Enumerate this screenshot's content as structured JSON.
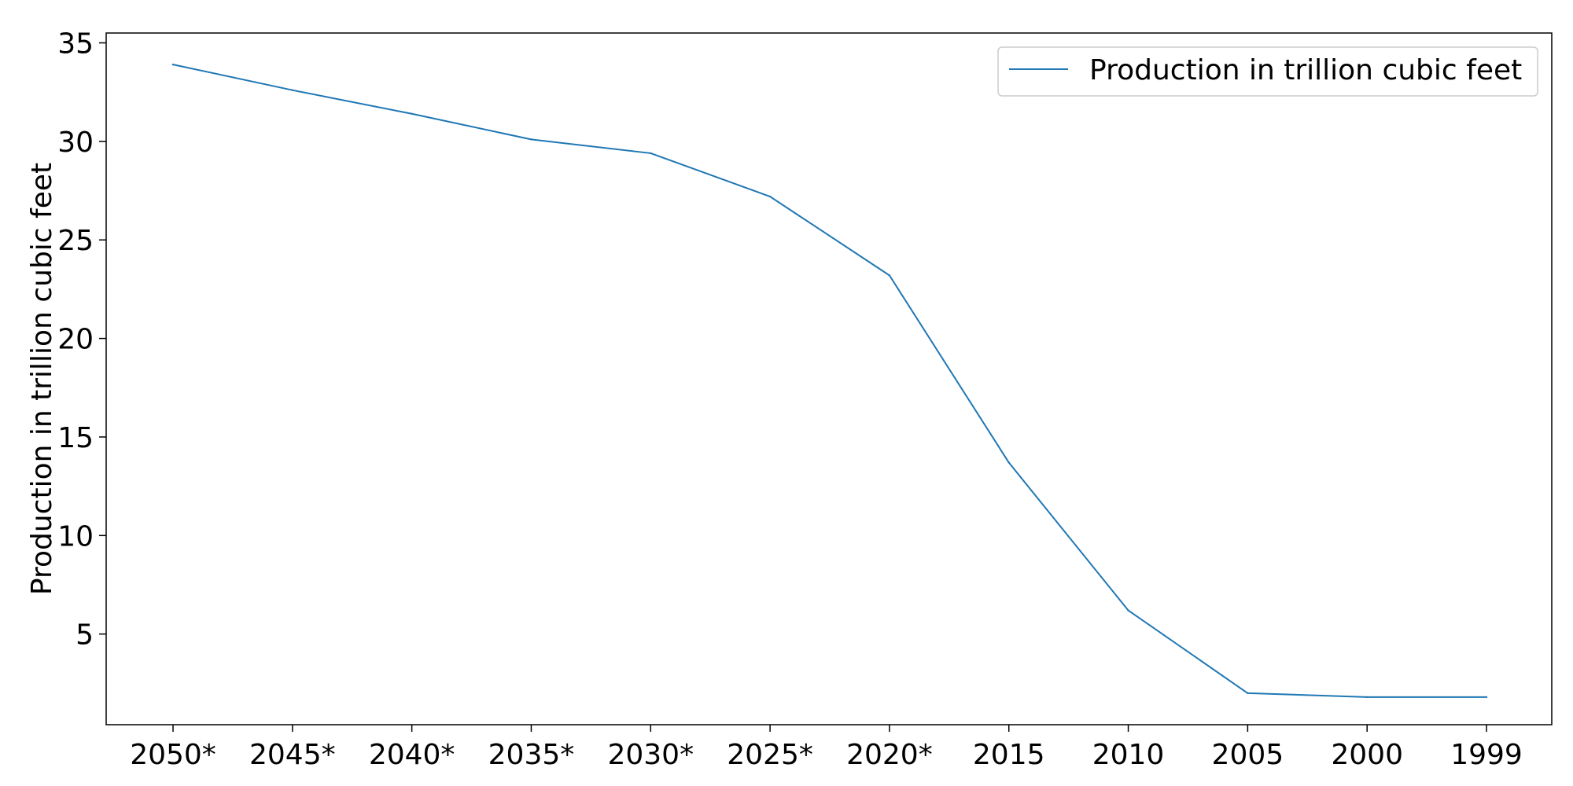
{
  "chart_data": {
    "type": "line",
    "title": "",
    "xlabel": "",
    "ylabel": "Production in trillion cubic feet",
    "categories": [
      "2050*",
      "2045*",
      "2040*",
      "2035*",
      "2030*",
      "2025*",
      "2020*",
      "2015",
      "2010",
      "2005",
      "2000",
      "1999"
    ],
    "series": [
      {
        "name": "Production in trillion cubic feet",
        "color": "#1f77b4",
        "values": [
          33.9,
          32.6,
          31.4,
          30.1,
          29.4,
          27.2,
          23.2,
          13.7,
          6.2,
          2.0,
          1.8,
          1.8
        ]
      }
    ],
    "yticks": [
      5,
      10,
      15,
      20,
      25,
      30,
      35
    ],
    "ylim": [
      0.4,
      35.5
    ],
    "grid": false,
    "legend_position": "top-right"
  }
}
